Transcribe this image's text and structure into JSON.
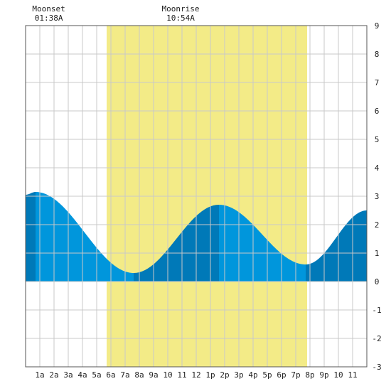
{
  "chart_data": {
    "type": "area",
    "title": "",
    "xlabel": "",
    "ylabel": "",
    "x_range_hours": [
      0,
      24
    ],
    "ylim": [
      -3,
      9
    ],
    "yticks": [
      -3,
      -2,
      -1,
      0,
      1,
      2,
      3,
      4,
      5,
      6,
      7,
      8,
      9
    ],
    "y_axis_side": "right",
    "grid": true,
    "xtick_hours": [
      1,
      2,
      3,
      4,
      5,
      6,
      7,
      8,
      9,
      10,
      11,
      12,
      13,
      14,
      15,
      16,
      17,
      18,
      19,
      20,
      21,
      22,
      23
    ],
    "xtick_labels": [
      "1a",
      "2a",
      "3a",
      "4a",
      "5a",
      "6a",
      "7a",
      "8a",
      "9a",
      "10",
      "11",
      "12",
      "1p",
      "2p",
      "3p",
      "4p",
      "5p",
      "6p",
      "7p",
      "8p",
      "9p",
      "10",
      "11"
    ],
    "daylight_band": {
      "start_hour": 5.7,
      "end_hour": 19.8,
      "color": "#f3eb87"
    },
    "moon_events": [
      {
        "label": "Moonset",
        "time": "01:38A",
        "hour": 1.63
      },
      {
        "label": "Moonrise",
        "time": "10:54A",
        "hour": 10.9
      }
    ],
    "tide_extremes": [
      {
        "hour": 0.7,
        "height": 3.15,
        "kind": "high"
      },
      {
        "hour": 7.6,
        "height": 0.3,
        "kind": "low"
      },
      {
        "hour": 13.6,
        "height": 2.7,
        "kind": "high"
      },
      {
        "hour": 19.7,
        "height": 0.6,
        "kind": "low"
      }
    ],
    "series": [
      {
        "x": [
          0,
          0.7,
          7.6,
          13.6,
          19.7,
          24
        ],
        "values": [
          3.05,
          3.15,
          0.3,
          2.7,
          0.6,
          2.5
        ]
      }
    ],
    "colors": {
      "rising_tide": "#0079b8",
      "falling_tide": "#0096dc",
      "grid": "#c8c8c8",
      "frame": "#555555",
      "background": "#ffffff"
    }
  }
}
